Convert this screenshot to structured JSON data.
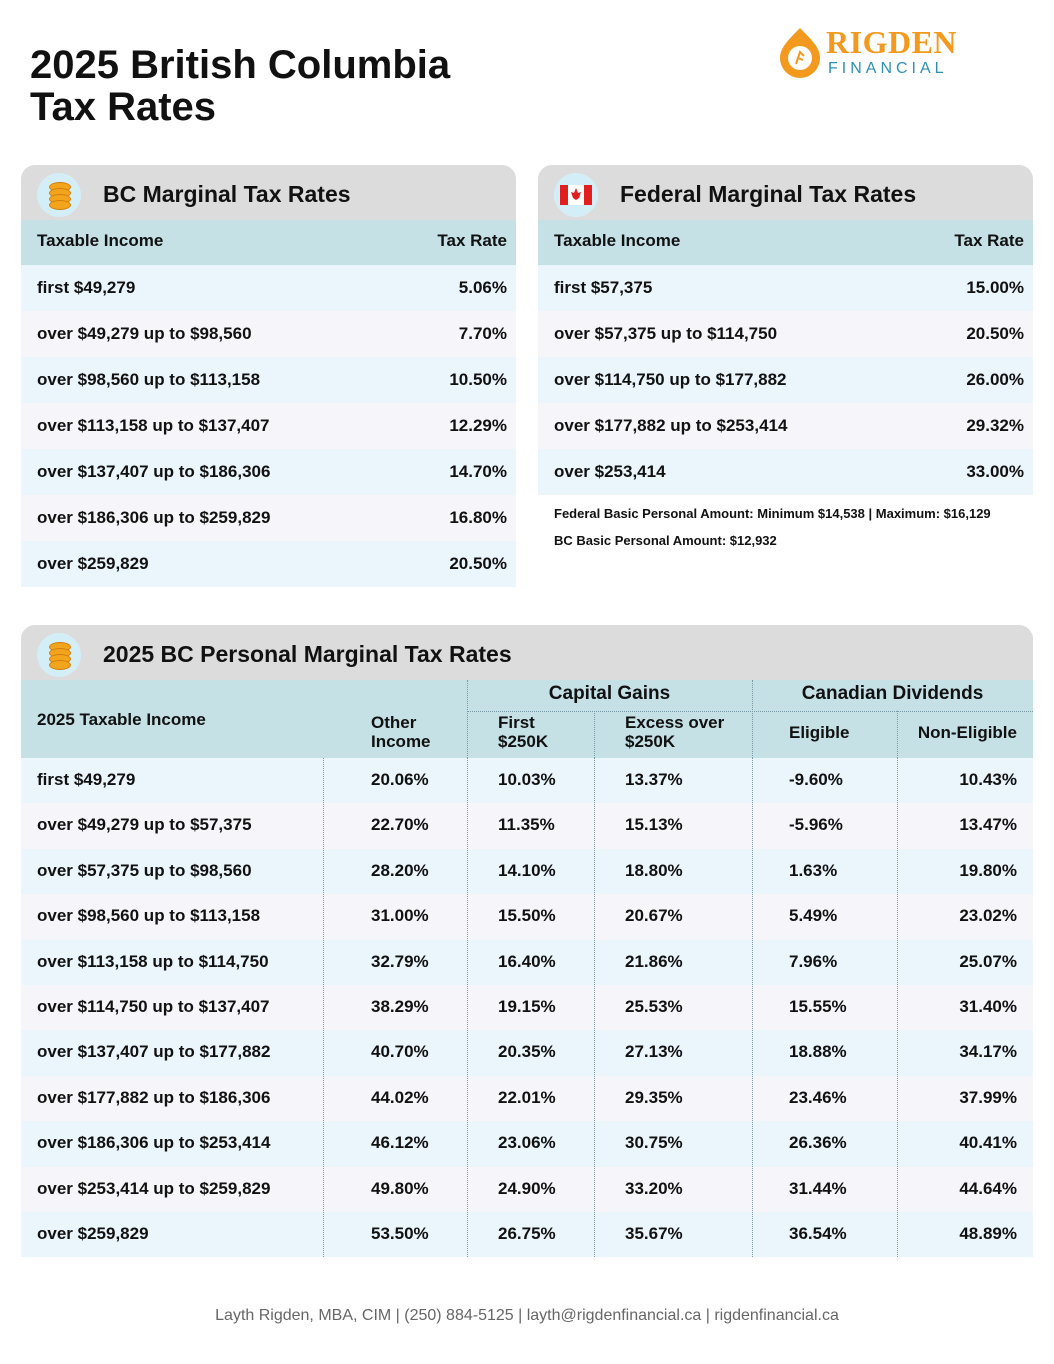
{
  "header": {
    "title": [
      "2025 British Columbia",
      "Tax Rates"
    ],
    "logo": {
      "name": "RIGDEN",
      "subtitle": "FINANCIAL"
    }
  },
  "bc_table": {
    "title": "BC Marginal Tax Rates",
    "columns": [
      "Taxable Income",
      "Tax Rate"
    ],
    "rows": [
      [
        "first $49,279",
        "5.06%"
      ],
      [
        "over $49,279 up to $98,560",
        "7.70%"
      ],
      [
        "over $98,560 up to $113,158",
        "10.50%"
      ],
      [
        "over $113,158 up to $137,407",
        "12.29%"
      ],
      [
        "over $137,407 up to $186,306",
        "14.70%"
      ],
      [
        "over $186,306 up to $259,829",
        "16.80%"
      ],
      [
        "over $259,829",
        "20.50%"
      ]
    ]
  },
  "federal_table": {
    "title": "Federal Marginal Tax Rates",
    "columns": [
      "Taxable Income",
      "Tax Rate"
    ],
    "rows": [
      [
        "first $57,375",
        "15.00%"
      ],
      [
        "over $57,375 up to $114,750",
        "20.50%"
      ],
      [
        "over $114,750 up to $177,882",
        "26.00%"
      ],
      [
        "over $177,882 up to $253,414",
        "29.32%"
      ],
      [
        "over $253,414",
        "33.00%"
      ]
    ],
    "notes": [
      "Federal Basic Personal Amount:  Minimum $14,538 | Maximum: $16,129",
      "BC Basic Personal Amount:  $12,932"
    ]
  },
  "combined_table": {
    "title": "2025 BC Personal Marginal Tax Rates",
    "groups": [
      "Capital Gains",
      "Canadian Dividends"
    ],
    "columns": [
      "2025 Taxable Income",
      "Other Income",
      "First $250K",
      "Excess over $250K",
      "Eligible",
      "Non-Eligible"
    ],
    "rows": [
      [
        "first $49,279",
        "20.06%",
        "10.03%",
        "13.37%",
        "-9.60%",
        "10.43%"
      ],
      [
        "over $49,279 up to $57,375",
        "22.70%",
        "11.35%",
        "15.13%",
        "-5.96%",
        "13.47%"
      ],
      [
        "over $57,375 up to $98,560",
        "28.20%",
        "14.10%",
        "18.80%",
        "1.63%",
        "19.80%"
      ],
      [
        "over $98,560 up to $113,158",
        "31.00%",
        "15.50%",
        "20.67%",
        "5.49%",
        "23.02%"
      ],
      [
        "over $113,158 up to $114,750",
        "32.79%",
        "16.40%",
        "21.86%",
        "7.96%",
        "25.07%"
      ],
      [
        "over $114,750 up to $137,407",
        "38.29%",
        "19.15%",
        "25.53%",
        "15.55%",
        "31.40%"
      ],
      [
        "over $137,407 up to $177,882",
        "40.70%",
        "20.35%",
        "27.13%",
        "18.88%",
        "34.17%"
      ],
      [
        "over $177,882 up to $186,306",
        "44.02%",
        "22.01%",
        "29.35%",
        "23.46%",
        "37.99%"
      ],
      [
        "over $186,306 up to $253,414",
        "46.12%",
        "23.06%",
        "30.75%",
        "26.36%",
        "40.41%"
      ],
      [
        "over $253,414 up to $259,829",
        "49.80%",
        "24.90%",
        "33.20%",
        "31.44%",
        "44.64%"
      ],
      [
        "over $259,829",
        "53.50%",
        "26.75%",
        "35.67%",
        "36.54%",
        "48.89%"
      ]
    ]
  },
  "footer": "Layth Rigden, MBA, CIM | (250) 884-5125 | layth@rigdenfinancial.ca | rigdenfinancial.ca"
}
